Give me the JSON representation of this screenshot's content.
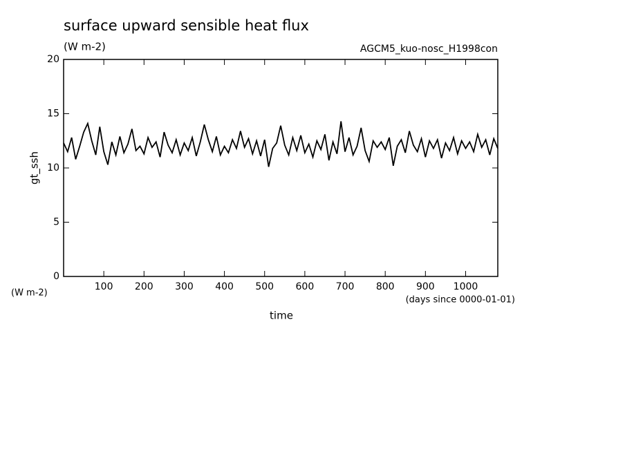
{
  "chart_data": {
    "type": "line",
    "title": "surface upward sensible heat flux",
    "subtitle": "(W m-2)",
    "annotation": "AGCM5_kuo-nosc_H1998con",
    "ylabel": "gt_ssh",
    "yunits": "(W m-2)",
    "xlabel": "time",
    "xunits": "(days since 0000-01-01)",
    "xlim": [
      0,
      1080
    ],
    "ylim": [
      0,
      20
    ],
    "xticks": [
      100,
      200,
      300,
      400,
      500,
      600,
      700,
      800,
      900,
      1000
    ],
    "yticks": [
      0,
      5,
      10,
      15,
      20
    ],
    "x": [
      0,
      10,
      20,
      30,
      40,
      50,
      60,
      70,
      80,
      90,
      100,
      110,
      120,
      130,
      140,
      150,
      160,
      170,
      180,
      190,
      200,
      210,
      220,
      230,
      240,
      250,
      260,
      270,
      280,
      290,
      300,
      310,
      320,
      330,
      340,
      350,
      360,
      370,
      380,
      390,
      400,
      410,
      420,
      430,
      440,
      450,
      460,
      470,
      480,
      490,
      500,
      510,
      520,
      530,
      540,
      550,
      560,
      570,
      580,
      590,
      600,
      610,
      620,
      630,
      640,
      650,
      660,
      670,
      680,
      690,
      700,
      710,
      720,
      730,
      740,
      750,
      760,
      770,
      780,
      790,
      800,
      810,
      820,
      830,
      840,
      850,
      860,
      870,
      880,
      890,
      900,
      910,
      920,
      930,
      940,
      950,
      960,
      970,
      980,
      990,
      1000,
      1010,
      1020,
      1030,
      1040,
      1050,
      1060,
      1070,
      1080
    ],
    "series": [
      {
        "name": "gt_ssh",
        "color": "#000000",
        "values": [
          12.3,
          11.5,
          12.8,
          10.8,
          12.0,
          13.3,
          14.1,
          12.5,
          11.2,
          13.8,
          11.5,
          10.3,
          12.4,
          11.2,
          12.9,
          11.4,
          12.2,
          13.6,
          11.6,
          12.0,
          11.3,
          12.8,
          11.9,
          12.4,
          11.0,
          13.3,
          12.1,
          11.4,
          12.6,
          11.2,
          12.3,
          11.6,
          12.8,
          11.1,
          12.4,
          14.0,
          12.6,
          11.5,
          12.9,
          11.2,
          12.0,
          11.4,
          12.6,
          11.8,
          13.4,
          11.9,
          12.7,
          11.3,
          12.5,
          11.1,
          12.6,
          10.1,
          11.8,
          12.3,
          13.9,
          12.1,
          11.2,
          12.8,
          11.6,
          13.0,
          11.4,
          12.2,
          11.0,
          12.5,
          11.7,
          13.1,
          10.7,
          12.4,
          11.3,
          14.3,
          11.5,
          12.8,
          11.2,
          12.0,
          13.7,
          11.6,
          10.6,
          12.5,
          11.9,
          12.4,
          11.7,
          12.8,
          10.2,
          12.0,
          12.6,
          11.4,
          13.4,
          12.1,
          11.5,
          12.7,
          11.0,
          12.5,
          11.8,
          12.6,
          10.9,
          12.3,
          11.6,
          12.8,
          11.3,
          12.5,
          11.8,
          12.4,
          11.5,
          13.1,
          11.9,
          12.6,
          11.2,
          12.7,
          11.8
        ]
      }
    ]
  }
}
